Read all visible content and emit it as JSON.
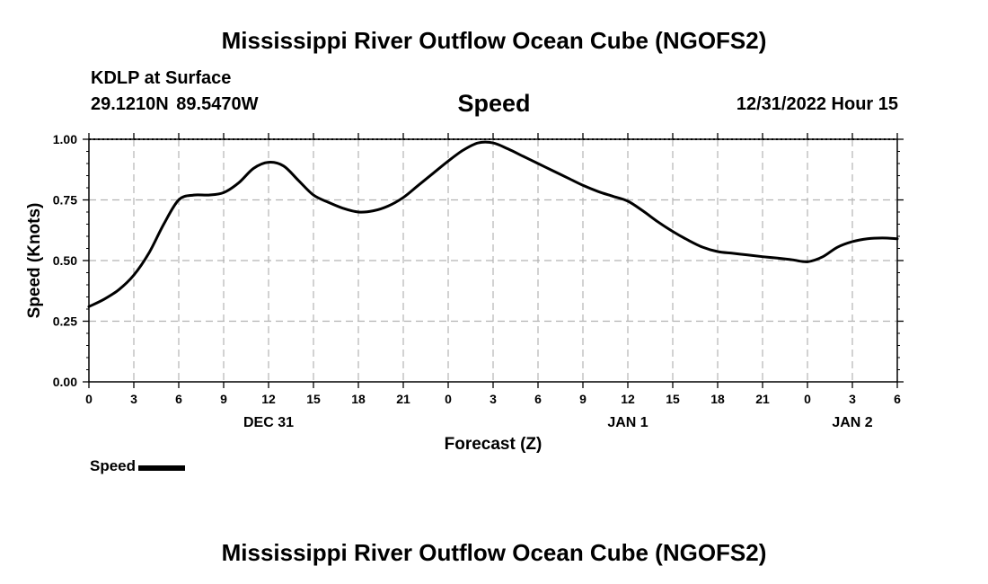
{
  "header": {
    "title": "Mississippi River Outflow Ocean Cube (NGOFS2)",
    "station": "KDLP at Surface",
    "coords": "29.1210N  89.5470W",
    "variable": "Speed",
    "timestamp": "12/31/2022 Hour 15"
  },
  "legend": {
    "label": "Speed",
    "color": "#000000"
  },
  "footer": {
    "title": "Mississippi River Outflow Ocean Cube (NGOFS2)"
  },
  "chart_data": {
    "type": "line",
    "title": "Speed",
    "xlabel": "Forecast (Z)",
    "ylabel": "Speed (Knots)",
    "xlim": [
      0,
      54
    ],
    "ylim": [
      0,
      1
    ],
    "grid": true,
    "x_ticks": [
      {
        "x": 0,
        "label": "0"
      },
      {
        "x": 3,
        "label": "3"
      },
      {
        "x": 6,
        "label": "6"
      },
      {
        "x": 9,
        "label": "9"
      },
      {
        "x": 12,
        "label": "12"
      },
      {
        "x": 15,
        "label": "15"
      },
      {
        "x": 18,
        "label": "18"
      },
      {
        "x": 21,
        "label": "21"
      },
      {
        "x": 24,
        "label": "0"
      },
      {
        "x": 27,
        "label": "3"
      },
      {
        "x": 30,
        "label": "6"
      },
      {
        "x": 33,
        "label": "9"
      },
      {
        "x": 36,
        "label": "12"
      },
      {
        "x": 39,
        "label": "15"
      },
      {
        "x": 42,
        "label": "18"
      },
      {
        "x": 45,
        "label": "21"
      },
      {
        "x": 48,
        "label": "0"
      },
      {
        "x": 51,
        "label": "3"
      },
      {
        "x": 54,
        "label": "6"
      }
    ],
    "date_labels": [
      {
        "x": 12,
        "label": "DEC 31"
      },
      {
        "x": 36,
        "label": "JAN 1"
      },
      {
        "x": 51,
        "label": "JAN 2"
      }
    ],
    "y_ticks": [
      {
        "y": 0,
        "label": "0.00"
      },
      {
        "y": 0.25,
        "label": "0.25"
      },
      {
        "y": 0.5,
        "label": "0.50"
      },
      {
        "y": 0.75,
        "label": "0.75"
      },
      {
        "y": 1.0,
        "label": "1.00"
      }
    ],
    "series": [
      {
        "name": "Speed",
        "color": "#000000",
        "x": [
          0,
          1,
          2,
          3,
          4,
          5,
          6,
          7,
          8,
          9,
          10,
          11,
          12,
          13,
          14,
          15,
          16,
          17,
          18,
          19,
          20,
          21,
          22,
          23,
          24,
          25,
          26,
          27,
          28,
          29,
          30,
          31,
          32,
          33,
          34,
          35,
          36,
          37,
          38,
          39,
          40,
          41,
          42,
          43,
          44,
          45,
          46,
          47,
          48,
          49,
          50,
          51,
          52,
          53,
          54
        ],
        "values": [
          0.31,
          0.34,
          0.38,
          0.44,
          0.53,
          0.65,
          0.75,
          0.77,
          0.77,
          0.78,
          0.82,
          0.88,
          0.905,
          0.89,
          0.83,
          0.77,
          0.74,
          0.715,
          0.7,
          0.705,
          0.725,
          0.76,
          0.81,
          0.86,
          0.91,
          0.955,
          0.985,
          0.985,
          0.96,
          0.93,
          0.9,
          0.87,
          0.84,
          0.81,
          0.785,
          0.765,
          0.745,
          0.705,
          0.66,
          0.62,
          0.585,
          0.555,
          0.537,
          0.53,
          0.523,
          0.516,
          0.51,
          0.503,
          0.495,
          0.515,
          0.555,
          0.578,
          0.59,
          0.593,
          0.59
        ]
      }
    ]
  }
}
